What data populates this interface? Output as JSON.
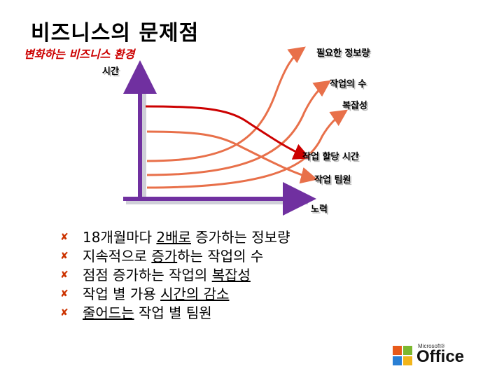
{
  "slide": {
    "title": "비즈니스의 문제점",
    "subtitle": "변화하는 비즈니스 환경"
  },
  "chart": {
    "y_axis_label": "시간",
    "x_axis_label": "노력",
    "curve_labels": {
      "info": "필요한 정보량",
      "tasks": "작업의 수",
      "complexity": "복잡성",
      "time": "작업 할당 시간",
      "team": "작업 팀원"
    },
    "colors": {
      "axis": "#7030a0",
      "rising": "#e8704a",
      "falling": "#cc0000"
    }
  },
  "bullets": [
    {
      "pre": "18개월마다 ",
      "u": "2배로",
      "post": " 증가하는 정보량"
    },
    {
      "pre": "지속적으로 ",
      "u": "증가",
      "post": "하는 작업의 수"
    },
    {
      "pre": "점점 증가하는 작업의 ",
      "u": "복잡성",
      "post": ""
    },
    {
      "pre": "작업 별 가용 ",
      "u": "시간의 감소",
      "post": ""
    },
    {
      "pre": "",
      "u": "줄어드는",
      "post": " 작업 별 팀원"
    }
  ],
  "logo": {
    "maker": "Microsoft®",
    "product": "Office",
    "icon": "office-logo-icon"
  }
}
